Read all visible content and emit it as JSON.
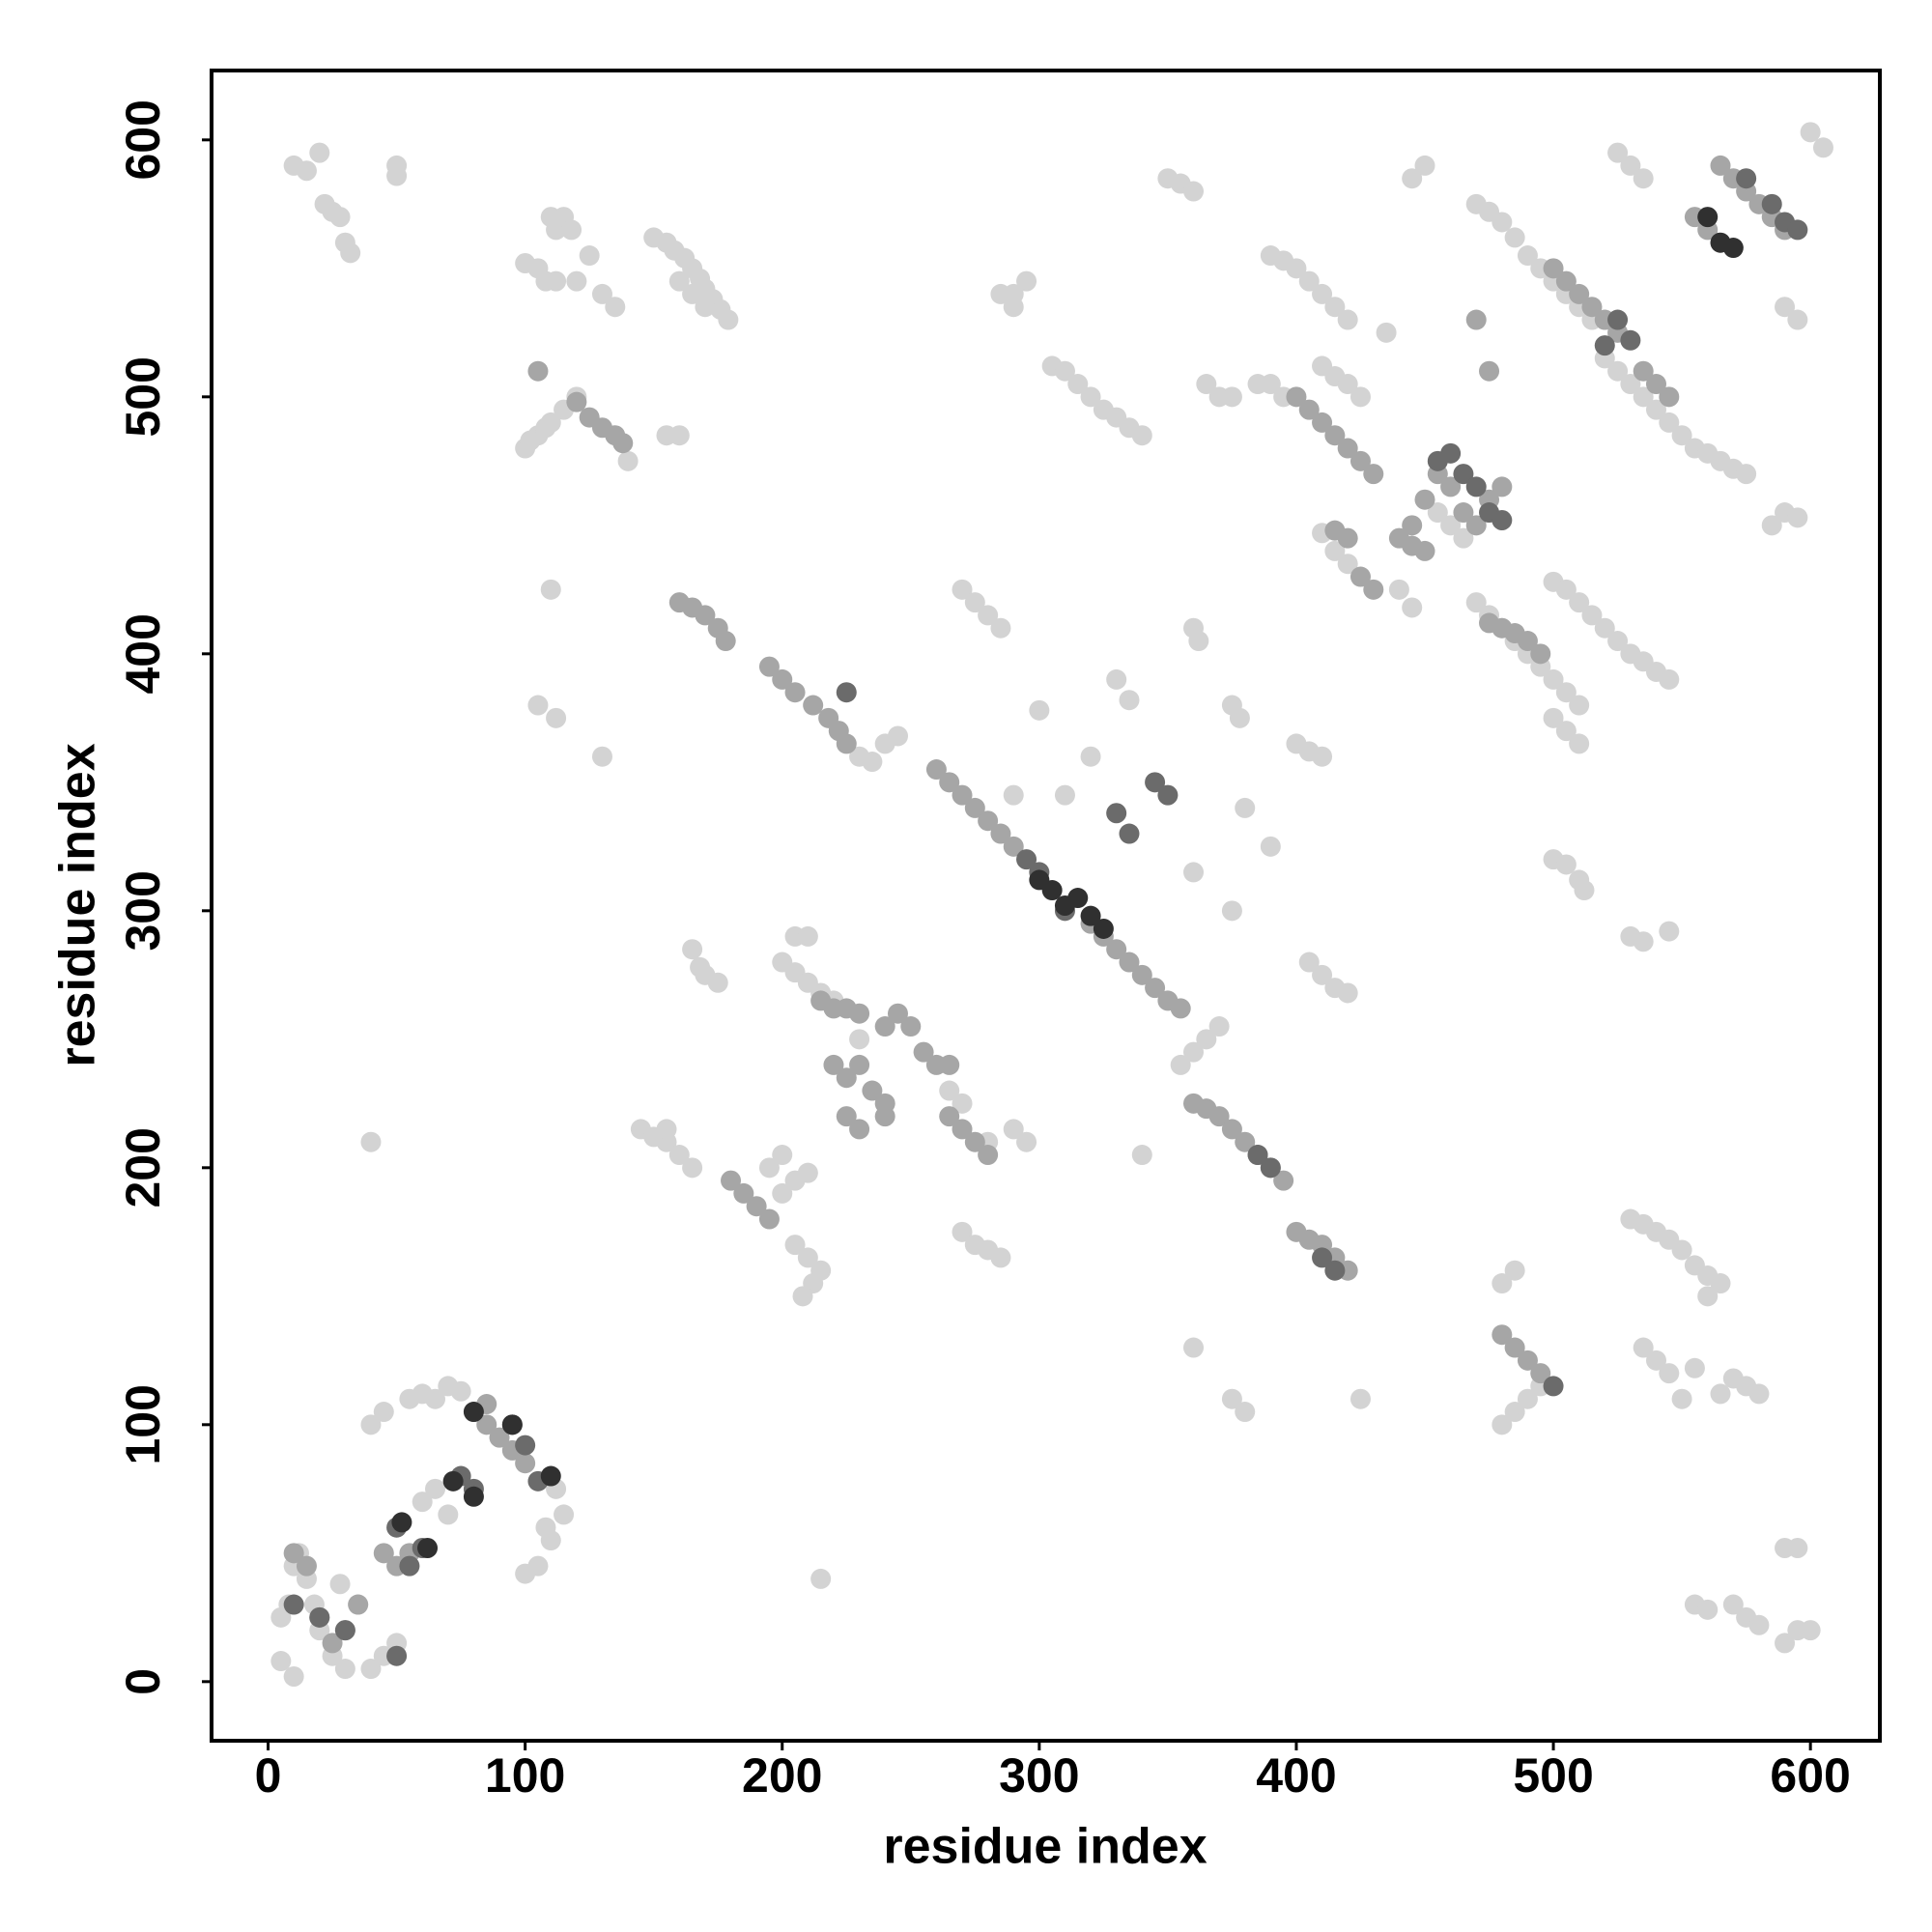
{
  "chart_data": {
    "type": "scatter",
    "x_label": "residue index",
    "y_label": "residue index",
    "xlim": [
      -22,
      627
    ],
    "ylim": [
      -23,
      627
    ],
    "xticks": [
      0,
      100,
      200,
      300,
      400,
      500,
      600
    ],
    "yticks": [
      0,
      100,
      200,
      300,
      400,
      500,
      600
    ],
    "series": [
      {
        "color": "#d3d3d3",
        "x": [
          10,
          15,
          20,
          22,
          25,
          28,
          30,
          32,
          50,
          50,
          100,
          105,
          108,
          110,
          112,
          115,
          118,
          120,
          125,
          130,
          135,
          112,
          150,
          155,
          158,
          162,
          165,
          168,
          170,
          173,
          176,
          179,
          160,
          165,
          170,
          100,
          105,
          110,
          115,
          120,
          102,
          108,
          155,
          160,
          140,
          285,
          290,
          295,
          290,
          305,
          310,
          315,
          320,
          325,
          330,
          340,
          335,
          350,
          355,
          360,
          365,
          370,
          375,
          385,
          390,
          395,
          390,
          395,
          400,
          405,
          410,
          415,
          420,
          410,
          415,
          420,
          425,
          435,
          445,
          450,
          470,
          475,
          480,
          485,
          490,
          495,
          500,
          505,
          510,
          515,
          525,
          530,
          535,
          520,
          525,
          530,
          535,
          540,
          545,
          550,
          555,
          560,
          565,
          570,
          575,
          590,
          595,
          600,
          605,
          585,
          590,
          595,
          410,
          415,
          420,
          440,
          445,
          455,
          460,
          465,
          470,
          475,
          480,
          485,
          490,
          495,
          500,
          505,
          510,
          500,
          505,
          510,
          515,
          520,
          525,
          530,
          535,
          540,
          545,
          500,
          505,
          510,
          500,
          505,
          510,
          512,
          530,
          535,
          545,
          400,
          405,
          410,
          405,
          410,
          415,
          420,
          330,
          335,
          320,
          300,
          290,
          310,
          360,
          362,
          375,
          378,
          360,
          375,
          380,
          390,
          270,
          275,
          280,
          285,
          205,
          210,
          165,
          168,
          170,
          175,
          200,
          205,
          210,
          215,
          220,
          145,
          150,
          155,
          160,
          165,
          155,
          200,
          205,
          210,
          195,
          200,
          205,
          210,
          215,
          212,
          208,
          270,
          275,
          280,
          285,
          280,
          290,
          295,
          265,
          270,
          340,
          360,
          375,
          380,
          425,
          355,
          360,
          365,
          370,
          215,
          40,
          230,
          480,
          485,
          480,
          485,
          490,
          495,
          530,
          535,
          540,
          545,
          550,
          555,
          560,
          565,
          560,
          535,
          540,
          545,
          550,
          555,
          570,
          575,
          580,
          565,
          555,
          560,
          570,
          575,
          580,
          590,
          595,
          600,
          590,
          595,
          110,
          105,
          112,
          130,
          230,
          235,
          240,
          245,
          5,
          8,
          10,
          12,
          15,
          18,
          20,
          25,
          30,
          28,
          35,
          5,
          10,
          40,
          45,
          50,
          40,
          45,
          55,
          60,
          65,
          70,
          75,
          60,
          65,
          70,
          105,
          110,
          115,
          112,
          108,
          100
        ],
        "y": [
          590,
          588,
          595,
          575,
          572,
          570,
          560,
          556,
          590,
          586,
          552,
          550,
          545,
          570,
          565,
          570,
          565,
          545,
          555,
          540,
          535,
          545,
          562,
          560,
          557,
          554,
          550,
          546,
          542,
          538,
          534,
          530,
          545,
          540,
          535,
          480,
          485,
          490,
          495,
          500,
          483,
          488,
          485,
          485,
          475,
          540,
          535,
          545,
          540,
          512,
          510,
          505,
          500,
          495,
          492,
          485,
          488,
          585,
          583,
          580,
          505,
          500,
          500,
          505,
          505,
          500,
          555,
          553,
          550,
          545,
          540,
          535,
          530,
          512,
          508,
          505,
          500,
          525,
          585,
          590,
          575,
          572,
          568,
          562,
          555,
          550,
          545,
          540,
          535,
          530,
          595,
          590,
          585,
          515,
          510,
          505,
          500,
          495,
          490,
          485,
          480,
          478,
          475,
          472,
          470,
          535,
          530,
          603,
          597,
          450,
          455,
          453,
          447,
          440,
          435,
          425,
          418,
          455,
          450,
          445,
          420,
          415,
          410,
          405,
          400,
          395,
          390,
          385,
          380,
          428,
          425,
          420,
          415,
          410,
          405,
          400,
          397,
          393,
          390,
          375,
          370,
          365,
          320,
          318,
          312,
          308,
          290,
          288,
          292,
          365,
          362,
          360,
          280,
          275,
          270,
          268,
          390,
          382,
          360,
          378,
          345,
          345,
          410,
          405,
          380,
          375,
          315,
          300,
          340,
          325,
          425,
          420,
          415,
          410,
          290,
          290,
          285,
          278,
          275,
          272,
          280,
          276,
          272,
          268,
          265,
          215,
          212,
          210,
          205,
          200,
          215,
          190,
          195,
          198,
          200,
          205,
          170,
          165,
          160,
          155,
          150,
          175,
          170,
          168,
          165,
          210,
          215,
          210,
          230,
          225,
          205,
          130,
          110,
          105,
          110,
          240,
          245,
          250,
          255,
          40,
          210,
          250,
          155,
          160,
          100,
          105,
          110,
          115,
          180,
          178,
          175,
          172,
          168,
          162,
          158,
          155,
          150,
          130,
          125,
          120,
          110,
          122,
          118,
          115,
          112,
          112,
          30,
          28,
          30,
          25,
          22,
          15,
          20,
          20,
          52,
          52,
          425,
          380,
          375,
          360,
          360,
          358,
          365,
          368,
          25,
          30,
          45,
          50,
          40,
          30,
          20,
          10,
          5,
          38,
          30,
          8,
          2,
          5,
          10,
          15,
          100,
          105,
          110,
          112,
          110,
          115,
          113,
          70,
          75,
          65,
          45,
          55,
          65,
          75,
          60,
          42
        ]
      },
      {
        "color": "#a6a6a6",
        "x": [
          120,
          125,
          130,
          135,
          138,
          105,
          160,
          165,
          170,
          175,
          178,
          195,
          200,
          205,
          212,
          218,
          222,
          225,
          260,
          265,
          270,
          275,
          280,
          285,
          290,
          320,
          325,
          330,
          335,
          340,
          345,
          350,
          355,
          215,
          220,
          225,
          230,
          220,
          225,
          230,
          235,
          240,
          225,
          230,
          240,
          240,
          245,
          250,
          255,
          260,
          265,
          180,
          185,
          190,
          195,
          265,
          270,
          275,
          280,
          360,
          365,
          370,
          375,
          380,
          385,
          390,
          395,
          400,
          405,
          410,
          415,
          420,
          480,
          485,
          490,
          495,
          400,
          405,
          410,
          415,
          420,
          425,
          430,
          440,
          445,
          450,
          455,
          460,
          465,
          470,
          475,
          450,
          445,
          475,
          480,
          485,
          490,
          495,
          500,
          505,
          510,
          515,
          520,
          525,
          535,
          540,
          545,
          555,
          560,
          565,
          570,
          575,
          580,
          585,
          590,
          470,
          475,
          480,
          415,
          420,
          425,
          430,
          10,
          15,
          20,
          25,
          30,
          35,
          45,
          50,
          55,
          85,
          90,
          95,
          100,
          80,
          85
        ],
        "y": [
          498,
          492,
          488,
          485,
          482,
          510,
          420,
          418,
          415,
          410,
          405,
          395,
          390,
          385,
          380,
          375,
          370,
          365,
          355,
          350,
          345,
          340,
          335,
          330,
          325,
          295,
          290,
          285,
          280,
          275,
          270,
          265,
          262,
          265,
          262,
          262,
          260,
          240,
          235,
          240,
          230,
          225,
          220,
          215,
          220,
          255,
          260,
          255,
          245,
          240,
          240,
          195,
          190,
          185,
          180,
          220,
          215,
          210,
          205,
          225,
          223,
          220,
          215,
          210,
          205,
          200,
          195,
          175,
          172,
          170,
          165,
          160,
          135,
          130,
          125,
          120,
          500,
          495,
          490,
          485,
          480,
          475,
          470,
          445,
          450,
          460,
          470,
          465,
          455,
          450,
          460,
          440,
          442,
          412,
          410,
          408,
          405,
          400,
          550,
          545,
          540,
          535,
          530,
          525,
          510,
          505,
          500,
          570,
          565,
          590,
          585,
          580,
          575,
          570,
          565,
          530,
          510,
          465,
          448,
          445,
          430,
          425,
          50,
          45,
          25,
          15,
          20,
          30,
          50,
          45,
          50,
          100,
          95,
          90,
          85,
          105,
          108
        ]
      },
      {
        "color": "#6b6b6b",
        "x": [
          225,
          310,
          300,
          295,
          330,
          335,
          345,
          350,
          385,
          390,
          410,
          415,
          455,
          460,
          465,
          470,
          475,
          480,
          525,
          520,
          530,
          575,
          585,
          590,
          595,
          500,
          20,
          30,
          50,
          55,
          60,
          75,
          80,
          95,
          100,
          105,
          50,
          10
        ],
        "y": [
          385,
          300,
          315,
          320,
          338,
          330,
          350,
          345,
          205,
          200,
          165,
          160,
          475,
          478,
          470,
          465,
          455,
          452,
          530,
          520,
          522,
          585,
          575,
          568,
          565,
          115,
          25,
          20,
          60,
          45,
          52,
          80,
          75,
          100,
          92,
          78,
          10,
          30
        ]
      },
      {
        "color": "#303030",
        "x": [
          300,
          305,
          310,
          315,
          320,
          325,
          560,
          565,
          570,
          80,
          95,
          110,
          72,
          80,
          52,
          62
        ],
        "y": [
          312,
          308,
          302,
          305,
          298,
          293,
          570,
          560,
          558,
          105,
          100,
          80,
          78,
          72,
          62,
          52
        ]
      }
    ]
  }
}
